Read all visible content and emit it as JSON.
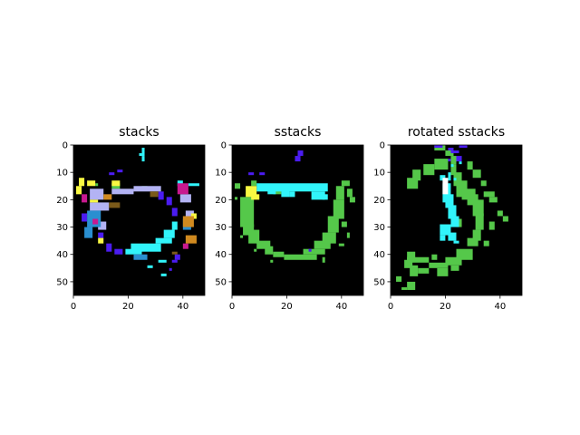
{
  "chart_data": [
    {
      "type": "heatmap",
      "title": "stacks",
      "xlim": [
        0,
        48
      ],
      "ylim": [
        55,
        0
      ],
      "xticks": [
        0,
        20,
        40
      ],
      "yticks": [
        0,
        10,
        20,
        30,
        40,
        50
      ],
      "background": "#000000",
      "regions": [
        {
          "color": "#55c84a",
          "rects": [
            [
              14,
              14,
              3,
              2
            ],
            [
              8,
              14,
              1,
              1
            ],
            [
              25,
              15,
              2,
              1
            ]
          ]
        },
        {
          "color": "#31f4fa",
          "rects": [
            [
              25,
              1,
              1,
              3
            ],
            [
              24,
              3,
              1,
              1
            ],
            [
              25,
              4,
              1,
              2
            ],
            [
              21,
              36,
              11,
              3
            ],
            [
              30,
              34,
              6,
              2
            ],
            [
              19,
              38,
              6,
              2
            ],
            [
              33,
              31,
              4,
              3
            ],
            [
              36,
              28,
              2,
              3
            ],
            [
              27,
              44,
              2,
              1
            ],
            [
              31,
              42,
              3,
              1
            ],
            [
              32,
              47,
              2,
              1
            ],
            [
              42,
              14,
              4,
              1
            ],
            [
              38,
              13,
              2,
              2
            ]
          ]
        },
        {
          "color": "#4b1cf1",
          "rects": [
            [
              13,
              10,
              2,
              1
            ],
            [
              16,
              9,
              2,
              1
            ],
            [
              31,
              17,
              2,
              3
            ],
            [
              34,
              19,
              2,
              3
            ],
            [
              36,
              23,
              2,
              3
            ],
            [
              37,
              40,
              2,
              2
            ],
            [
              36,
              42,
              2,
              1
            ],
            [
              35,
              45,
              1,
              1
            ],
            [
              12,
              36,
              2,
              3
            ],
            [
              15,
              38,
              3,
              2
            ],
            [
              9,
              32,
              2,
              2
            ],
            [
              3,
              25,
              2,
              3
            ]
          ]
        },
        {
          "color": "#b3b3f4",
          "rects": [
            [
              6,
              16,
              5,
              4
            ],
            [
              6,
              21,
              7,
              3
            ],
            [
              9,
              28,
              3,
              3
            ],
            [
              22,
              15,
              10,
              2
            ],
            [
              14,
              16,
              8,
              2
            ],
            [
              39,
              18,
              4,
              3
            ],
            [
              41,
              24,
              3,
              3
            ]
          ]
        },
        {
          "color": "#2a8fd0",
          "rects": [
            [
              5,
              24,
              5,
              6
            ],
            [
              4,
              30,
              3,
              4
            ],
            [
              22,
              40,
              5,
              2
            ],
            [
              40,
              27,
              3,
              4
            ]
          ]
        },
        {
          "color": "#f8f842",
          "rects": [
            [
              2,
              12,
              2,
              3
            ],
            [
              1,
              15,
              2,
              3
            ],
            [
              5,
              13,
              3,
              2
            ],
            [
              14,
              13,
              3,
              2
            ],
            [
              9,
              34,
              2,
              2
            ],
            [
              43,
              25,
              2,
              2
            ],
            [
              6,
              20,
              3,
              1
            ]
          ]
        },
        {
          "color": "#c8198f",
          "rects": [
            [
              38,
              14,
              4,
              4
            ],
            [
              3,
              18,
              2,
              3
            ],
            [
              7,
              27,
              2,
              2
            ],
            [
              40,
              36,
              2,
              2
            ]
          ]
        },
        {
          "color": "#d08a20",
          "rects": [
            [
              40,
              26,
              4,
              4
            ],
            [
              41,
              33,
              4,
              3
            ],
            [
              11,
              18,
              3,
              2
            ]
          ]
        },
        {
          "color": "#7a5a1a",
          "rects": [
            [
              13,
              21,
              4,
              2
            ],
            [
              28,
              17,
              3,
              2
            ],
            [
              36,
              39,
              2,
              1
            ]
          ]
        }
      ]
    },
    {
      "type": "heatmap",
      "title": "sstacks",
      "xlim": [
        0,
        48
      ],
      "ylim": [
        55,
        0
      ],
      "xticks": [
        0,
        20,
        40
      ],
      "yticks": [
        0,
        10,
        20,
        30,
        40,
        50
      ],
      "background": "#000000",
      "regions": [
        {
          "color": "#55c84a",
          "rects": [
            [
              3,
              19,
              5,
              11
            ],
            [
              4,
              29,
              4,
              4
            ],
            [
              6,
              31,
              4,
              5
            ],
            [
              9,
              35,
              5,
              3
            ],
            [
              12,
              37,
              3,
              3
            ],
            [
              15,
              39,
              4,
              2
            ],
            [
              19,
              40,
              12,
              2
            ],
            [
              26,
              38,
              8,
              2
            ],
            [
              30,
              35,
              6,
              3
            ],
            [
              33,
              32,
              5,
              4
            ],
            [
              35,
              26,
              4,
              6
            ],
            [
              37,
              20,
              4,
              7
            ],
            [
              38,
              15,
              3,
              5
            ],
            [
              40,
              13,
              3,
              2
            ],
            [
              42,
              16,
              2,
              3
            ],
            [
              43,
              19,
              2,
              2
            ],
            [
              1,
              14,
              2,
              2
            ],
            [
              1,
              19,
              1,
              1
            ],
            [
              7,
              13,
              2,
              2
            ],
            [
              15,
              16,
              3,
              2
            ],
            [
              40,
              28,
              2,
              2
            ],
            [
              42,
              32,
              1,
              2
            ],
            [
              39,
              36,
              2,
              1
            ],
            [
              14,
              42,
              1,
              1
            ],
            [
              33,
              41,
              1,
              2
            ],
            [
              3,
              33,
              1,
              1
            ],
            [
              8,
              38,
              1,
              1
            ]
          ]
        },
        {
          "color": "#31f4fa",
          "rects": [
            [
              9,
              14,
              26,
              3
            ],
            [
              18,
              16,
              3,
              3
            ],
            [
              29,
              17,
              5,
              3
            ],
            [
              33,
              18,
              2,
              2
            ],
            [
              13,
              16,
              3,
              2
            ],
            [
              21,
              17,
              2,
              2
            ]
          ]
        },
        {
          "color": "#f8f842",
          "rects": [
            [
              5,
              15,
              4,
              4
            ],
            [
              7,
              18,
              3,
              2
            ]
          ]
        },
        {
          "color": "#4b1cf1",
          "rects": [
            [
              24,
              2,
              2,
              2
            ],
            [
              23,
              4,
              2,
              2
            ],
            [
              6,
              10,
              2,
              1
            ],
            [
              10,
              10,
              2,
              1
            ],
            [
              28,
              38,
              1,
              1
            ]
          ]
        }
      ]
    },
    {
      "type": "heatmap",
      "title": "rotated sstacks",
      "xlim": [
        0,
        48
      ],
      "ylim": [
        55,
        0
      ],
      "xticks": [
        0,
        20,
        40
      ],
      "yticks": [
        0,
        10,
        20,
        30,
        40,
        50
      ],
      "background": "#000000",
      "regions": [
        {
          "color": "#55c84a",
          "rects": [
            [
              16,
              0,
              4,
              2
            ],
            [
              20,
              2,
              3,
              2
            ],
            [
              22,
              4,
              2,
              3
            ],
            [
              6,
              12,
              4,
              4
            ],
            [
              8,
              9,
              3,
              4
            ],
            [
              12,
              7,
              4,
              4
            ],
            [
              16,
              5,
              5,
              4
            ],
            [
              22,
              7,
              2,
              4
            ],
            [
              23,
              10,
              3,
              5
            ],
            [
              24,
              13,
              4,
              6
            ],
            [
              26,
              16,
              5,
              4
            ],
            [
              28,
              18,
              4,
              4
            ],
            [
              30,
              20,
              4,
              6
            ],
            [
              31,
              25,
              3,
              6
            ],
            [
              30,
              31,
              3,
              4
            ],
            [
              28,
              34,
              4,
              3
            ],
            [
              24,
              38,
              6,
              4
            ],
            [
              20,
              41,
              6,
              3
            ],
            [
              14,
              43,
              7,
              2
            ],
            [
              6,
              41,
              8,
              2
            ],
            [
              6,
              39,
              3,
              3
            ],
            [
              5,
              42,
              3,
              3
            ],
            [
              7,
              44,
              3,
              4
            ],
            [
              10,
              45,
              4,
              2
            ],
            [
              17,
              45,
              4,
              3
            ],
            [
              22,
              44,
              3,
              2
            ],
            [
              34,
              17,
              4,
              2
            ],
            [
              36,
              19,
              3,
              2
            ],
            [
              39,
              24,
              2,
              2
            ],
            [
              41,
              26,
              2,
              2
            ],
            [
              30,
              9,
              3,
              3
            ],
            [
              28,
              6,
              2,
              3
            ],
            [
              33,
              13,
              2,
              2
            ],
            [
              6,
              50,
              3,
              3
            ],
            [
              2,
              48,
              2,
              2
            ],
            [
              4,
              52,
              2,
              1
            ],
            [
              36,
              28,
              2,
              3
            ],
            [
              34,
              35,
              2,
              2
            ],
            [
              15,
              40,
              2,
              2
            ],
            [
              24,
              27,
              2,
              3
            ]
          ]
        },
        {
          "color": "#31f4fa",
          "rects": [
            [
              19,
              14,
              3,
              7
            ],
            [
              20,
              18,
              3,
              5
            ],
            [
              21,
              22,
              3,
              5
            ],
            [
              22,
              26,
              3,
              4
            ],
            [
              18,
              29,
              4,
              4
            ],
            [
              18,
              33,
              2,
              2
            ],
            [
              21,
              32,
              3,
              3
            ],
            [
              23,
              35,
              2,
              1
            ],
            [
              21,
              10,
              1,
              3
            ],
            [
              18,
              11,
              2,
              2
            ],
            [
              23,
              12,
              1,
              1
            ],
            [
              22,
              7,
              1,
              1
            ],
            [
              25,
              6,
              1,
              1
            ]
          ]
        },
        {
          "color": "#ffffff",
          "rects": [
            [
              19,
              12,
              2,
              6
            ]
          ]
        },
        {
          "color": "#4b1cf1",
          "rects": [
            [
              16,
              0,
              3,
              1
            ],
            [
              25,
              0,
              3,
              1
            ],
            [
              21,
              1,
              2,
              1
            ],
            [
              22,
              2,
              3,
              1
            ],
            [
              24,
              4,
              2,
              2
            ],
            [
              21,
              5,
              1,
              1
            ]
          ]
        }
      ]
    }
  ]
}
